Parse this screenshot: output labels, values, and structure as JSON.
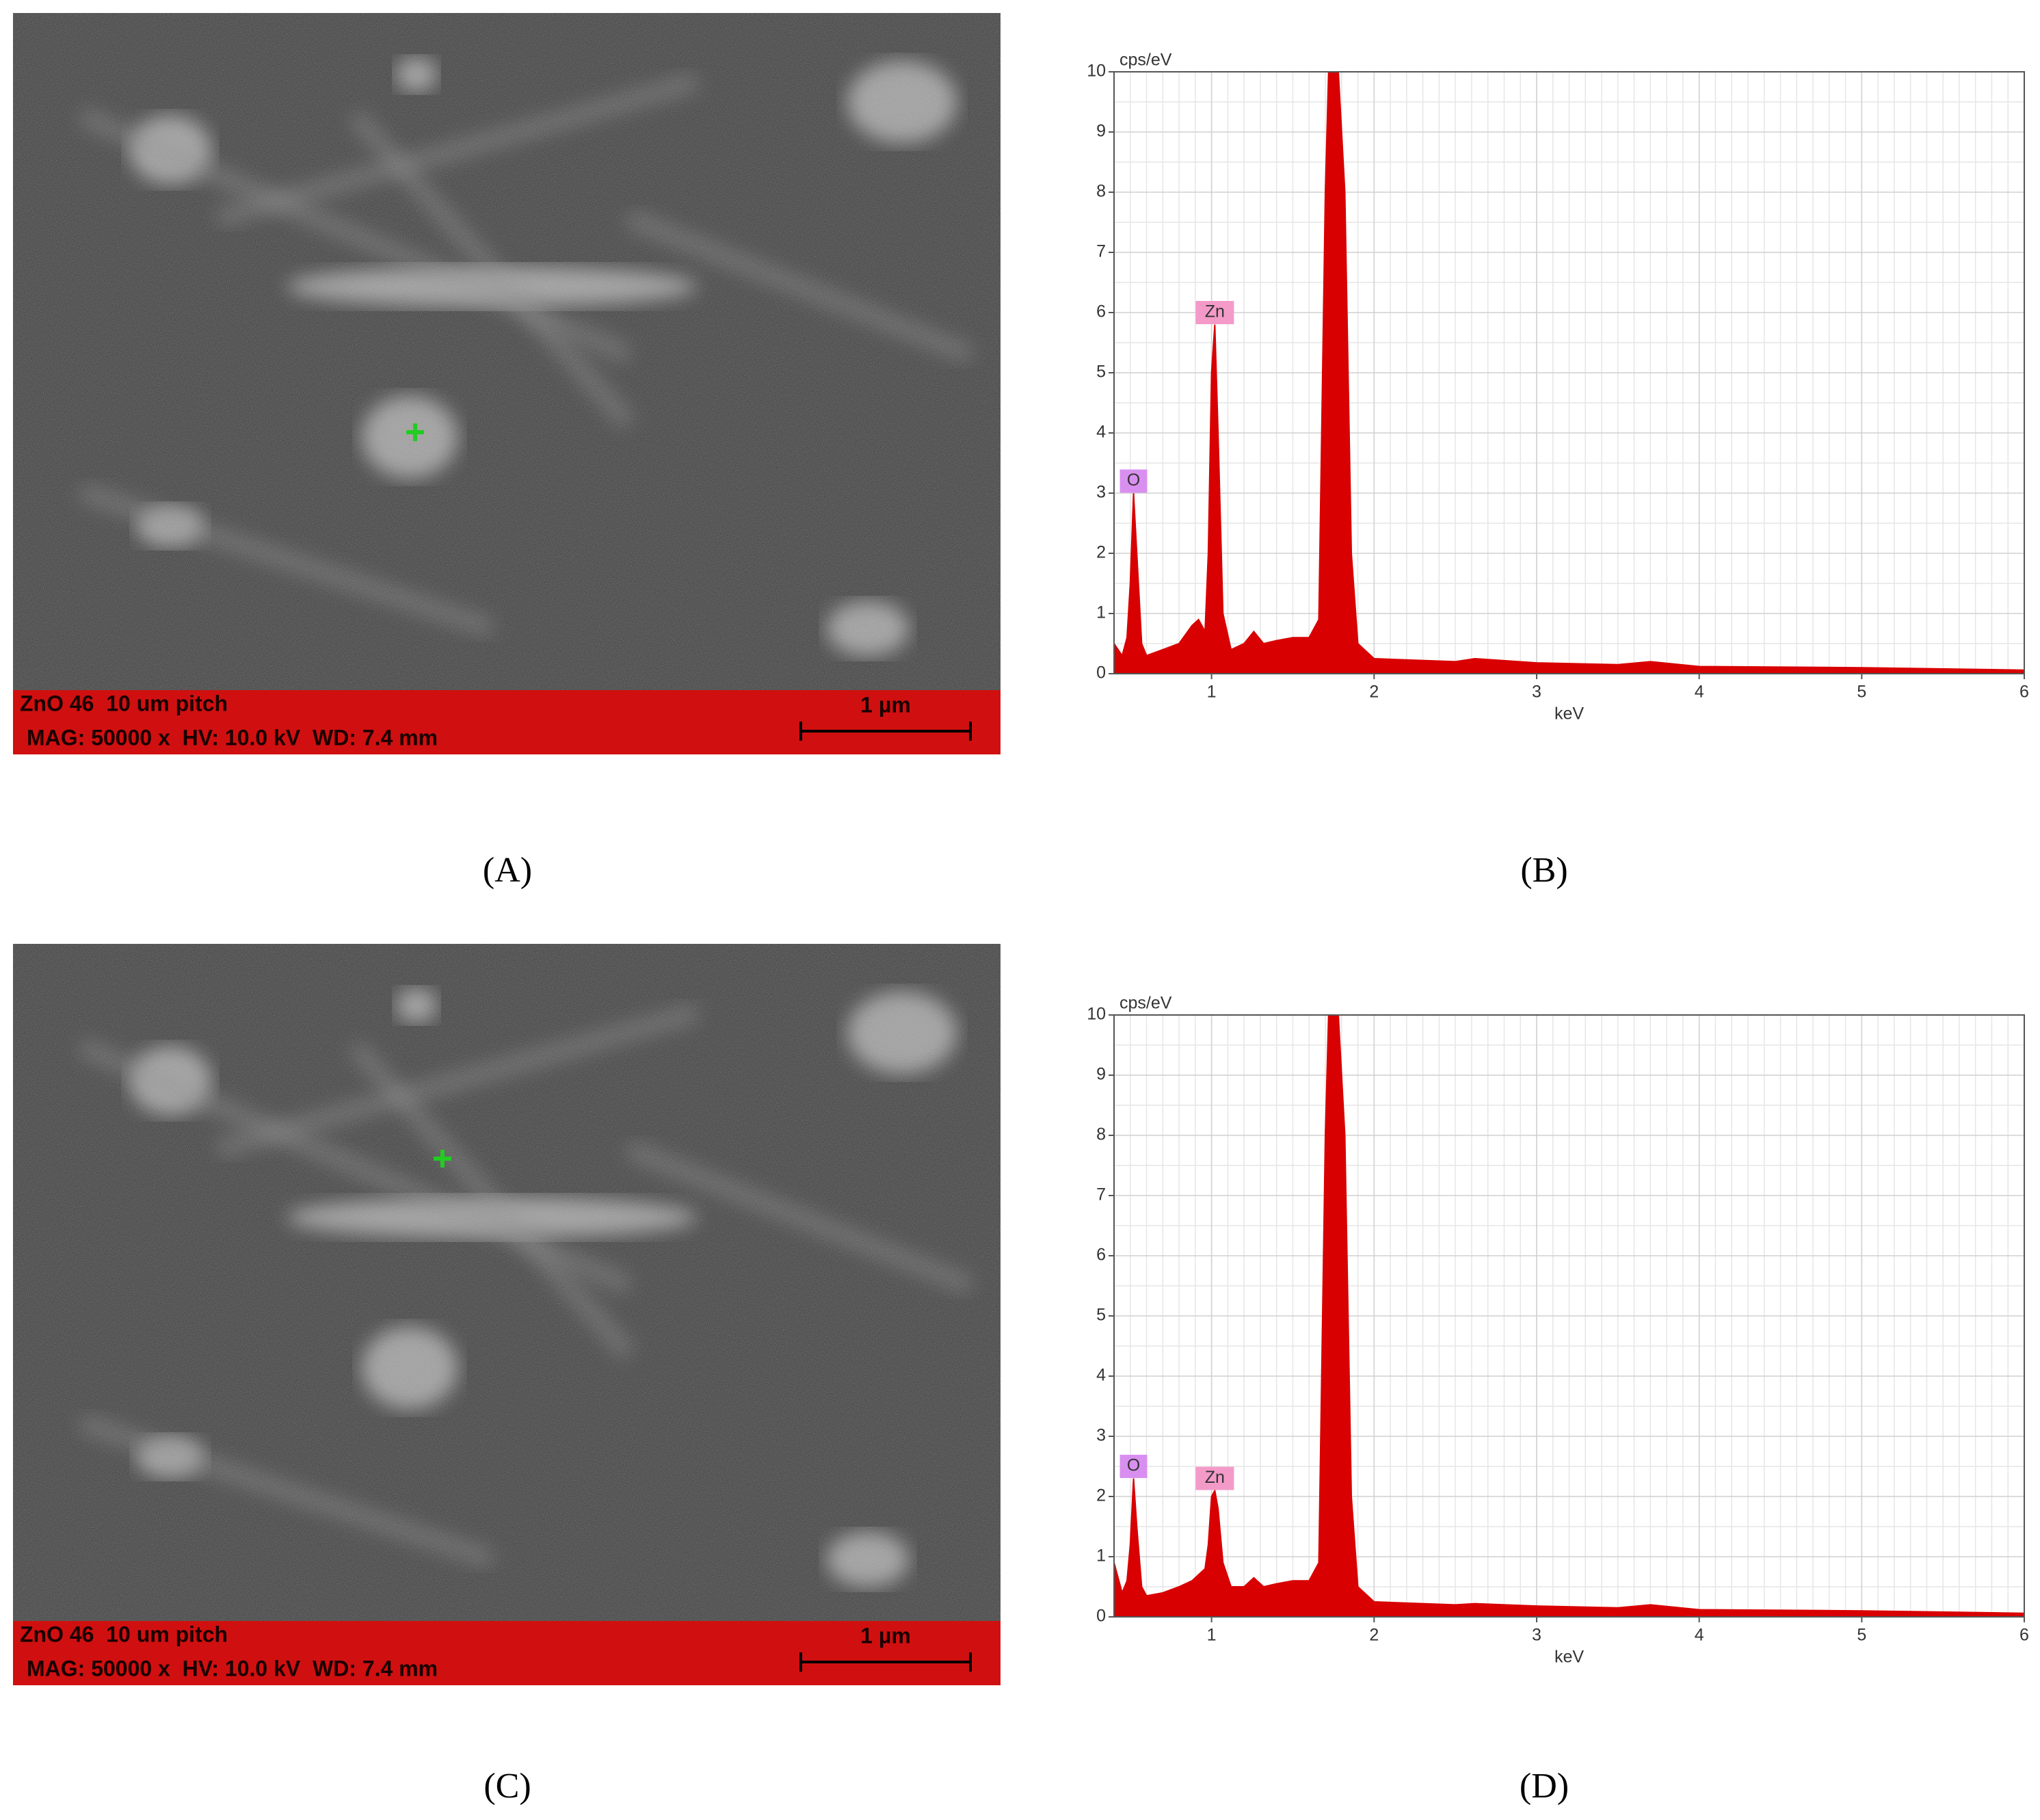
{
  "panels": [
    {
      "label": "(A)",
      "caption": "ZnO 46  10 um pitch",
      "info": "MAG: 50000 x  HV: 10.0 kV  WD: 7.4 mm",
      "scale": "1 µm"
    },
    {
      "label": "(B)"
    },
    {
      "label": "(C)",
      "caption": "ZnO 46  10 um pitch",
      "info": "MAG: 50000 x  HV: 10.0 kV  WD: 7.4 mm",
      "scale": "1 µm"
    },
    {
      "label": "(D)"
    }
  ],
  "chart_data": [
    {
      "type": "area",
      "x_label": "keV",
      "y_label": "cps/eV",
      "color": "#d80000",
      "xlim": [
        0.4,
        6
      ],
      "xticks": [
        1,
        2,
        3,
        4,
        5,
        6
      ],
      "ylim": [
        0,
        10
      ],
      "yticks": [
        0,
        1,
        2,
        3,
        4,
        5,
        6,
        7,
        8,
        9,
        10
      ],
      "grid": true,
      "x": [
        0.4,
        0.45,
        0.48,
        0.5,
        0.52,
        0.54,
        0.57,
        0.6,
        0.7,
        0.8,
        0.88,
        0.92,
        0.96,
        0.98,
        1.0,
        1.02,
        1.04,
        1.07,
        1.12,
        1.2,
        1.26,
        1.32,
        1.4,
        1.5,
        1.6,
        1.66,
        1.7,
        1.72,
        1.78,
        1.82,
        1.86,
        1.9,
        2.0,
        2.5,
        2.62,
        3.0,
        3.5,
        3.7,
        4.0,
        5.0,
        6.0
      ],
      "values": [
        0.5,
        0.3,
        0.6,
        1.5,
        3.0,
        2.0,
        0.5,
        0.3,
        0.4,
        0.5,
        0.8,
        0.9,
        0.7,
        2.0,
        5.0,
        5.8,
        4.0,
        1.0,
        0.4,
        0.5,
        0.7,
        0.5,
        0.55,
        0.6,
        0.6,
        0.9,
        8,
        10,
        10,
        8,
        2,
        0.5,
        0.25,
        0.2,
        0.25,
        0.18,
        0.15,
        0.2,
        0.12,
        0.1,
        0.06
      ],
      "annotations": [
        {
          "text": "O",
          "x": 0.52,
          "y": 3.2,
          "color": "#d98ff0"
        },
        {
          "text": "Zn",
          "x": 1.02,
          "y": 6.0,
          "color": "#f49ac8"
        }
      ]
    },
    {
      "type": "area",
      "x_label": "keV",
      "y_label": "cps/eV",
      "color": "#d80000",
      "xlim": [
        0.4,
        6
      ],
      "xticks": [
        1,
        2,
        3,
        4,
        5,
        6
      ],
      "ylim": [
        0,
        10
      ],
      "yticks": [
        0,
        1,
        2,
        3,
        4,
        5,
        6,
        7,
        8,
        9,
        10
      ],
      "grid": true,
      "x": [
        0.4,
        0.45,
        0.48,
        0.5,
        0.52,
        0.54,
        0.57,
        0.6,
        0.7,
        0.8,
        0.88,
        0.92,
        0.96,
        0.98,
        1.0,
        1.02,
        1.04,
        1.07,
        1.12,
        1.2,
        1.26,
        1.32,
        1.4,
        1.5,
        1.6,
        1.66,
        1.7,
        1.72,
        1.78,
        1.82,
        1.86,
        1.9,
        2.0,
        2.5,
        2.62,
        3.0,
        3.5,
        3.7,
        4.0,
        5.0,
        6.0
      ],
      "values": [
        0.9,
        0.4,
        0.6,
        1.2,
        2.3,
        1.5,
        0.5,
        0.35,
        0.4,
        0.5,
        0.6,
        0.7,
        0.8,
        1.2,
        2.0,
        2.1,
        1.8,
        0.9,
        0.5,
        0.5,
        0.65,
        0.5,
        0.55,
        0.6,
        0.6,
        0.9,
        8,
        10,
        10,
        8,
        2,
        0.5,
        0.25,
        0.2,
        0.22,
        0.18,
        0.15,
        0.2,
        0.12,
        0.1,
        0.06
      ],
      "annotations": [
        {
          "text": "O",
          "x": 0.52,
          "y": 2.5,
          "color": "#d98ff0"
        },
        {
          "text": "Zn",
          "x": 1.02,
          "y": 2.3,
          "color": "#f49ac8"
        }
      ]
    }
  ]
}
